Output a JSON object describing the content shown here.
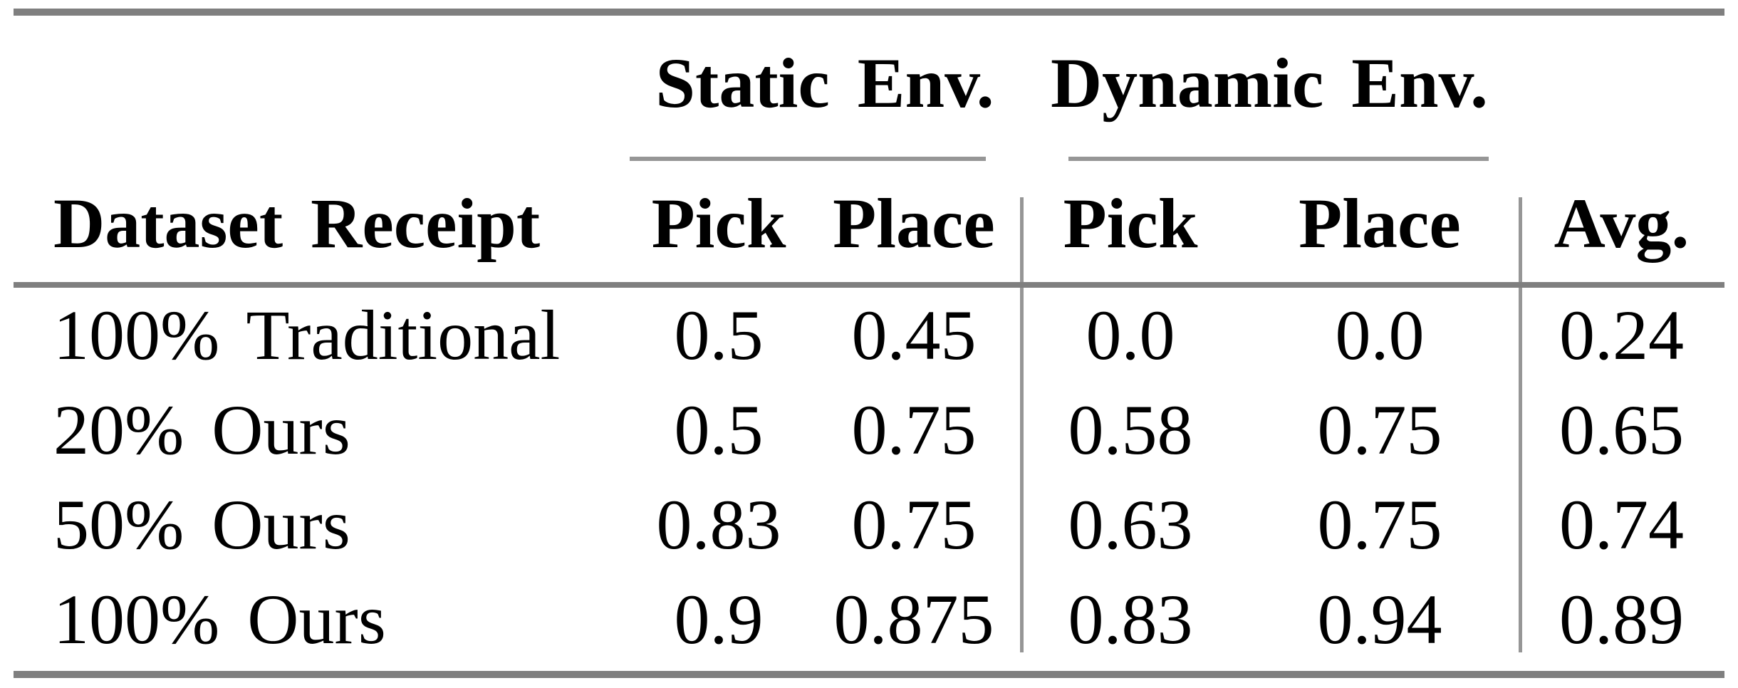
{
  "table": {
    "group_headers": [
      {
        "label": "Static Env."
      },
      {
        "label": "Dynamic Env."
      }
    ],
    "column_headers": [
      "Dataset Receipt",
      "Pick",
      "Place",
      "Pick",
      "Place",
      "Avg."
    ],
    "rows": [
      {
        "cells": [
          "100% Traditional",
          "0.5",
          "0.45",
          "0.0",
          "0.0",
          "0.24"
        ]
      },
      {
        "cells": [
          "20% Ours",
          "0.5",
          "0.75",
          "0.58",
          "0.75",
          "0.65"
        ]
      },
      {
        "cells": [
          "50% Ours",
          "0.83",
          "0.75",
          "0.63",
          "0.75",
          "0.74"
        ]
      },
      {
        "cells": [
          "100% Ours",
          "0.9",
          "0.875",
          "0.83",
          "0.94",
          "0.89"
        ]
      }
    ],
    "colors": {
      "rule_heavy": "#7f7f7f",
      "rule_light": "#969696",
      "text": "#000000",
      "background": "#ffffff"
    }
  }
}
